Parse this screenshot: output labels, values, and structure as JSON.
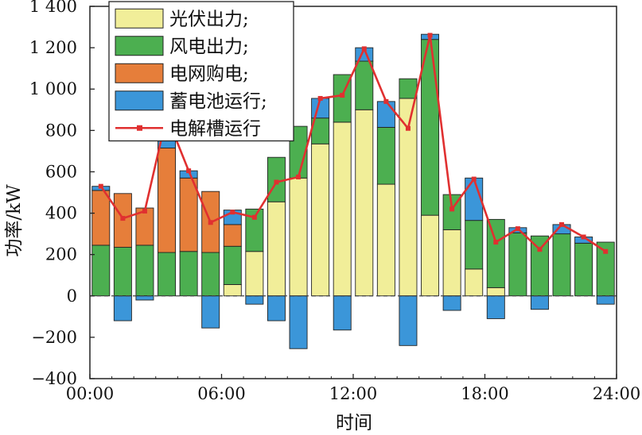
{
  "chart_data": {
    "type": "bar",
    "stacked": true,
    "xlabel": "时间",
    "ylabel": "功率/kW",
    "xlim": [
      0,
      24
    ],
    "ylim": [
      -400,
      1400
    ],
    "x_ticks": [
      0,
      6,
      12,
      18,
      24
    ],
    "x_tick_labels": [
      "00:00",
      "06:00",
      "12:00",
      "18:00",
      "24:00"
    ],
    "y_ticks": [
      -400,
      -200,
      0,
      200,
      400,
      600,
      800,
      1000,
      1200,
      1400
    ],
    "y_tick_labels": [
      "−400",
      "−200",
      "0",
      "200",
      "400",
      "600",
      "800",
      "1 000",
      "1 200",
      "1 400"
    ],
    "legend_position": "top-left",
    "grid": false,
    "hours": [
      0,
      1,
      2,
      3,
      4,
      5,
      6,
      7,
      8,
      9,
      10,
      11,
      12,
      13,
      14,
      15,
      16,
      17,
      18,
      19,
      20,
      21,
      22,
      23
    ],
    "series": [
      {
        "name": "光伏出力;",
        "color": "#f1ee99",
        "kind": "bar",
        "values": [
          0,
          0,
          0,
          0,
          0,
          0,
          55,
          215,
          455,
          570,
          735,
          840,
          900,
          540,
          955,
          390,
          320,
          130,
          40,
          0,
          0,
          0,
          0,
          0
        ]
      },
      {
        "name": "风电出力;",
        "color": "#4caf50",
        "kind": "bar",
        "values": [
          245,
          235,
          245,
          210,
          215,
          210,
          185,
          205,
          215,
          250,
          125,
          230,
          235,
          275,
          95,
          850,
          170,
          235,
          330,
          305,
          290,
          300,
          255,
          260
        ]
      },
      {
        "name": "电网购电;",
        "color": "#e67e3a",
        "kind": "bar",
        "values": [
          265,
          260,
          180,
          505,
          355,
          295,
          105,
          0,
          0,
          0,
          0,
          0,
          0,
          0,
          0,
          0,
          0,
          0,
          0,
          0,
          0,
          0,
          0,
          0
        ]
      },
      {
        "name": "蓄电池运行;",
        "color": "#3b96d9",
        "kind": "bar",
        "values": [
          20,
          -120,
          -20,
          145,
          35,
          -155,
          70,
          -40,
          -120,
          -255,
          95,
          -165,
          65,
          125,
          -240,
          25,
          -70,
          205,
          -110,
          25,
          -65,
          45,
          30,
          -40
        ]
      },
      {
        "name": "电解槽运行",
        "color": "#e03030",
        "kind": "line",
        "values": [
          530,
          375,
          410,
          870,
          605,
          355,
          405,
          380,
          550,
          575,
          955,
          970,
          1195,
          940,
          810,
          1260,
          420,
          565,
          260,
          325,
          225,
          345,
          285,
          215
        ]
      }
    ]
  }
}
